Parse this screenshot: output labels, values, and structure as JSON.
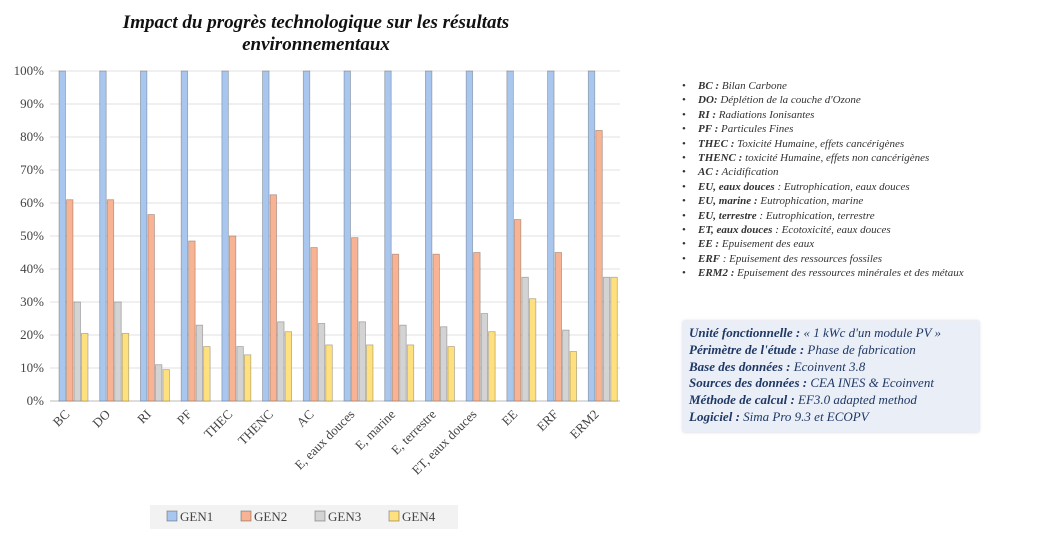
{
  "chart_data": {
    "type": "bar",
    "title": "Impact du progrès technologique  sur les résultats",
    "subtitle": "environnementaux",
    "categories": [
      "BC",
      "DO",
      "RI",
      "PF",
      "THEC",
      "THENC",
      "AC",
      "E, eaux douces",
      "E, marine",
      "E, terrestre",
      "ET, eaux douces",
      "EE",
      "ERF",
      "ERM2"
    ],
    "series": [
      {
        "name": "GEN1",
        "color": "#a9c7ee",
        "values": [
          100,
          100,
          100,
          100,
          100,
          100,
          100,
          100,
          100,
          100,
          100,
          100,
          100,
          100
        ]
      },
      {
        "name": "GEN2",
        "color": "#f7b393",
        "values": [
          61,
          61,
          56.5,
          48.5,
          50,
          62.5,
          46.5,
          49.5,
          44.5,
          44.5,
          45,
          55,
          45,
          82
        ]
      },
      {
        "name": "GEN3",
        "color": "#d3d3d3",
        "values": [
          30,
          30,
          11,
          23,
          16.5,
          24,
          23.5,
          24,
          23,
          22.5,
          26.5,
          37.5,
          21.5,
          37.5
        ]
      },
      {
        "name": "GEN4",
        "color": "#ffe07e",
        "values": [
          20.5,
          20.5,
          9.5,
          16.5,
          14,
          21,
          17,
          17,
          17,
          16.5,
          21,
          31,
          15,
          37.5
        ]
      }
    ],
    "ylim": [
      0,
      100
    ],
    "yticks": [
      {
        "value": 0,
        "label": "0%"
      },
      {
        "value": 10,
        "label": "10%"
      },
      {
        "value": 20,
        "label": "20%"
      },
      {
        "value": 30,
        "label": "30%"
      },
      {
        "value": 40,
        "label": "40%"
      },
      {
        "value": 50,
        "label": "50%"
      },
      {
        "value": 60,
        "label": "60%"
      },
      {
        "value": 70,
        "label": "70%"
      },
      {
        "value": 80,
        "label": "80%"
      },
      {
        "value": 90,
        "label": "90%"
      },
      {
        "value": 100,
        "label": "100%"
      }
    ],
    "grid": true,
    "legend": "bottom"
  },
  "notes": [
    {
      "key": "BC :",
      "text": "Bilan Carbone"
    },
    {
      "key": "DO:",
      "text": "Déplétion de la couche d'Ozone"
    },
    {
      "key": "RI :",
      "text": "Radiations Ionisantes"
    },
    {
      "key": "PF :",
      "text": "Particules Fines"
    },
    {
      "key": "THEC :",
      "text": " Toxicité Humaine, effets cancérigènes"
    },
    {
      "key": "THENC :",
      "text": "toxicité Humaine, effets non cancérigènes"
    },
    {
      "key": "AC :",
      "text": "Acidification"
    },
    {
      "key": "EU, eaux douces",
      "text": ": Eutrophication, eaux douces"
    },
    {
      "key": "EU, marine :",
      "text": "Eutrophication, marine"
    },
    {
      "key": "EU, terrestre",
      "text": ": Eutrophication, terrestre"
    },
    {
      "key": "ET, eaux douces",
      "text": ": Ecotoxicité, eaux douces"
    },
    {
      "key": "EE :",
      "text": "Epuisement des eaux"
    },
    {
      "key": "ERF",
      "text": ": Epuisement des ressources fossiles"
    },
    {
      "key": "ERM2 :",
      "text": "Epuisement des ressources minérales et des métaux"
    }
  ],
  "info": [
    {
      "key": "Unité fonctionnelle :",
      "text": "« 1 kWc d'un module PV »"
    },
    {
      "key": "Périmètre de l'étude :",
      "text": "Phase de fabrication"
    },
    {
      "key": "Base des données :",
      "text": "Ecoinvent 3.8"
    },
    {
      "key": "Sources des données :",
      "text": "CEA INES & Ecoinvent"
    },
    {
      "key": "Méthode de calcul :",
      "text": "EF3.0 adapted method"
    },
    {
      "key": "Logiciel :",
      "text": "Sima Pro 9.3 et ECOPV"
    }
  ]
}
